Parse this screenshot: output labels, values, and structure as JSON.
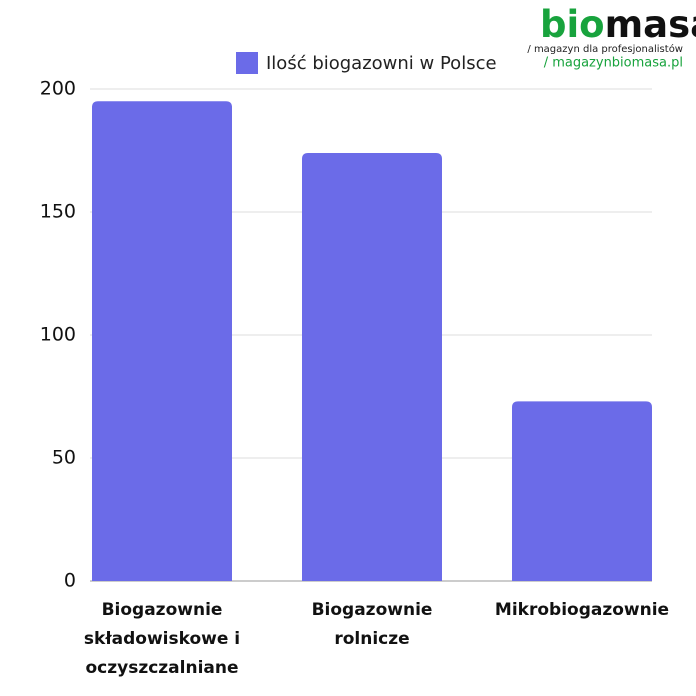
{
  "logo": {
    "name_start": "bio",
    "name_end": "masa",
    "tagline": "/ magazyn dla profesjonalistów",
    "url": "/ magazynbiomasa.pl"
  },
  "chart_data": {
    "type": "bar",
    "categories": [
      "Biogazownie składowiskowe i oczyszczalniane",
      "Biogazownie rolnicze",
      "Mikrobiogazownie"
    ],
    "series": [
      {
        "name": "Ilość biogazowni w Polsce",
        "color": "#6b6be8",
        "values": [
          195,
          174,
          73
        ]
      }
    ],
    "ylim": [
      0,
      200
    ],
    "yticks": [
      0,
      50,
      100,
      150,
      200
    ],
    "grid": true,
    "legend": "top"
  }
}
